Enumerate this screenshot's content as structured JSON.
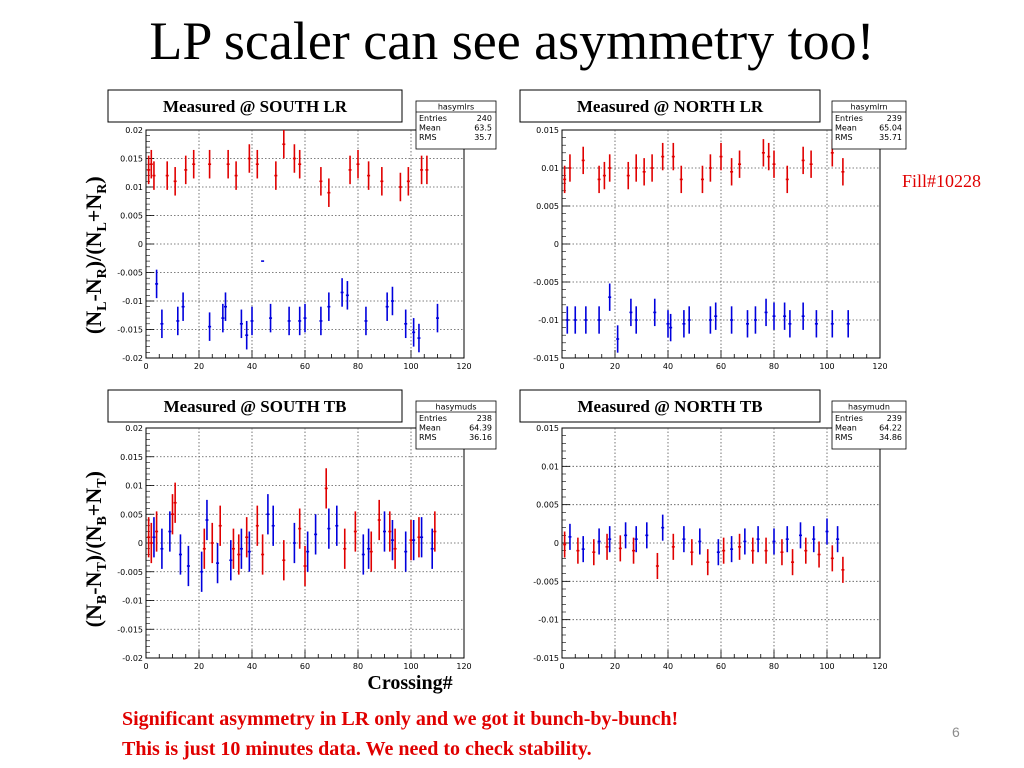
{
  "slide": {
    "title": "LP scaler can see asymmetry too!",
    "fill_label": "Fill#10228",
    "note_line1": "Significant asymmetry in LR only and we got it bunch-by-bunch!",
    "note_line2": "This is just 10 minutes data.  We need to check stability.",
    "page_number": "6",
    "xlabel": "Crossing#"
  },
  "colors": {
    "red": "#e00000",
    "blue": "#0000dd",
    "text": "#e00000"
  },
  "chart_data": [
    {
      "id": "south-lr",
      "type": "scatter",
      "title": "Measured @ SOUTH LR",
      "stats": {
        "name": "hasymlrs",
        "rows": [
          [
            "Entries",
            "240"
          ],
          [
            "Mean",
            "63.5"
          ],
          [
            "RMS",
            "35.7"
          ]
        ]
      },
      "xlim": [
        0,
        120
      ],
      "ylim": [
        -0.02,
        0.02
      ],
      "xticks": [
        0,
        20,
        40,
        60,
        80,
        100,
        120
      ],
      "xtick_labels": [
        "0",
        "20",
        "40",
        "60",
        "80",
        "100",
        "120"
      ],
      "yticks": [
        -0.02,
        -0.015,
        -0.01,
        -0.005,
        0,
        0.005,
        0.01,
        0.015,
        0.02
      ],
      "ytick_labels": [
        "-0.02",
        "-0.015",
        "-0.01",
        "-0.005",
        "0",
        "0.005",
        "0.01",
        "0.015",
        "0.02"
      ],
      "grid": true,
      "series": [
        {
          "color": "red",
          "x": [
            1,
            2,
            3,
            8,
            11,
            15,
            18,
            24,
            31,
            34,
            39,
            42,
            49,
            52,
            56,
            58,
            66,
            69,
            77,
            80,
            84,
            89,
            96,
            99,
            104,
            106
          ],
          "y": [
            0.013,
            0.014,
            0.012,
            0.012,
            0.011,
            0.013,
            0.014,
            0.014,
            0.014,
            0.012,
            0.015,
            0.014,
            0.012,
            0.0175,
            0.015,
            0.014,
            0.011,
            0.009,
            0.013,
            0.014,
            0.012,
            0.011,
            0.01,
            0.011,
            0.013,
            0.013
          ],
          "err": [
            0.0025,
            0.0025,
            0.0025,
            0.0025,
            0.0025,
            0.0025,
            0.0025,
            0.0025,
            0.0025,
            0.0025,
            0.0025,
            0.0025,
            0.0025,
            0.0025,
            0.0025,
            0.0025,
            0.0025,
            0.0025,
            0.0025,
            0.0025,
            0.0025,
            0.0025,
            0.0025,
            0.0025,
            0.0025,
            0.0025
          ]
        },
        {
          "color": "blue",
          "x": [
            4,
            6,
            12,
            14,
            24,
            29,
            30,
            36,
            38,
            40,
            44,
            47,
            54,
            58,
            60,
            66,
            69,
            74,
            76,
            83,
            91,
            93,
            98,
            101,
            103,
            110
          ],
          "y": [
            -0.007,
            -0.014,
            -0.0135,
            -0.011,
            -0.0145,
            -0.013,
            -0.011,
            -0.014,
            -0.016,
            -0.0135,
            -0.003,
            -0.013,
            -0.0135,
            -0.0135,
            -0.013,
            -0.0135,
            -0.011,
            -0.0085,
            -0.009,
            -0.0135,
            -0.011,
            -0.01,
            -0.014,
            -0.0155,
            -0.0165,
            -0.013
          ],
          "err": [
            0.0025,
            0.0025,
            0.0025,
            0.0025,
            0.0025,
            0.0025,
            0.0025,
            0.0025,
            0.0025,
            0.0025,
            0,
            0.0025,
            0.0025,
            0.0025,
            0.0025,
            0.0025,
            0.0025,
            0.0025,
            0.0025,
            0.0025,
            0.0025,
            0.0025,
            0.0025,
            0.0025,
            0.0025,
            0.0025
          ]
        }
      ]
    },
    {
      "id": "north-lr",
      "type": "scatter",
      "title": "Measured @ NORTH LR",
      "stats": {
        "name": "hasymlrn",
        "rows": [
          [
            "Entries",
            "239"
          ],
          [
            "Mean",
            "65.04"
          ],
          [
            "RMS",
            "35.71"
          ]
        ]
      },
      "xlim": [
        0,
        120
      ],
      "ylim": [
        -0.015,
        0.015
      ],
      "xticks": [
        0,
        20,
        40,
        60,
        80,
        100,
        120
      ],
      "xtick_labels": [
        "0",
        "20",
        "40",
        "60",
        "80",
        "100",
        "120"
      ],
      "yticks": [
        -0.015,
        -0.01,
        -0.005,
        0,
        0.005,
        0.01,
        0.015
      ],
      "ytick_labels": [
        "-0.015",
        "-0.01",
        "-0.005",
        "0",
        "0.005",
        "0.01",
        "0.015"
      ],
      "grid": true,
      "series": [
        {
          "color": "red",
          "x": [
            1,
            3,
            8,
            14,
            16,
            18,
            25,
            28,
            31,
            34,
            38,
            42,
            45,
            53,
            56,
            60,
            64,
            67,
            76,
            78,
            80,
            85,
            91,
            94,
            102,
            106
          ],
          "y": [
            0.0085,
            0.01,
            0.011,
            0.0085,
            0.009,
            0.01,
            0.009,
            0.01,
            0.0095,
            0.01,
            0.0115,
            0.0115,
            0.0085,
            0.0085,
            0.01,
            0.0115,
            0.0095,
            0.0105,
            0.012,
            0.0115,
            0.0105,
            0.0085,
            0.011,
            0.0105,
            0.012,
            0.0095
          ],
          "err": [
            0.0018,
            0.0018,
            0.0018,
            0.0018,
            0.0018,
            0.0018,
            0.0018,
            0.0018,
            0.0018,
            0.0018,
            0.0018,
            0.0018,
            0.0018,
            0.0018,
            0.0018,
            0.0018,
            0.0018,
            0.0018,
            0.0018,
            0.0018,
            0.0018,
            0.0018,
            0.0018,
            0.0018,
            0.0018,
            0.0018
          ]
        },
        {
          "color": "blue",
          "x": [
            2,
            5,
            9,
            14,
            18,
            21,
            26,
            28,
            35,
            40,
            41,
            46,
            48,
            56,
            58,
            64,
            70,
            73,
            77,
            80,
            84,
            86,
            91,
            96,
            102,
            108
          ],
          "y": [
            -0.01,
            -0.01,
            -0.01,
            -0.01,
            -0.007,
            -0.0125,
            -0.009,
            -0.01,
            -0.009,
            -0.0105,
            -0.011,
            -0.0105,
            -0.01,
            -0.01,
            -0.0095,
            -0.01,
            -0.0105,
            -0.01,
            -0.009,
            -0.0095,
            -0.0095,
            -0.0105,
            -0.0095,
            -0.0105,
            -0.0105,
            -0.0105
          ],
          "err": [
            0.0018,
            0.0018,
            0.0018,
            0.0018,
            0.0018,
            0.0018,
            0.0018,
            0.0018,
            0.0018,
            0.0018,
            0.0018,
            0.0018,
            0.0018,
            0.0018,
            0.0018,
            0.0018,
            0.0018,
            0.0018,
            0.0018,
            0.0018,
            0.0018,
            0.0018,
            0.0018,
            0.0018,
            0.0018,
            0.0018
          ]
        }
      ]
    },
    {
      "id": "south-tb",
      "type": "scatter",
      "title": "Measured @ SOUTH TB",
      "stats": {
        "name": "hasymuds",
        "rows": [
          [
            "Entries",
            "238"
          ],
          [
            "Mean",
            "64.39"
          ],
          [
            "RMS",
            "36.16"
          ]
        ]
      },
      "xlim": [
        0,
        120
      ],
      "ylim": [
        -0.02,
        0.02
      ],
      "xticks": [
        0,
        20,
        40,
        60,
        80,
        100,
        120
      ],
      "xtick_labels": [
        "0",
        "20",
        "40",
        "60",
        "80",
        "100",
        "120"
      ],
      "yticks": [
        -0.02,
        -0.015,
        -0.01,
        -0.005,
        0,
        0.005,
        0.01,
        0.015,
        0.02
      ],
      "ytick_labels": [
        "-0.02",
        "-0.015",
        "-0.01",
        "-0.005",
        "0",
        "0.005",
        "0.01",
        "0.015",
        "0.02"
      ],
      "grid": true,
      "series": [
        {
          "color": "red",
          "x": [
            1,
            2,
            4,
            10,
            11,
            22,
            25,
            28,
            33,
            35,
            38,
            42,
            44,
            52,
            58,
            60,
            68,
            75,
            79,
            85,
            88,
            92,
            94,
            100,
            103,
            109
          ],
          "y": [
            0.001,
            0.0,
            0.002,
            0.005,
            0.007,
            -0.001,
            0.0,
            0.003,
            -0.001,
            -0.002,
            0.001,
            0.003,
            -0.002,
            -0.003,
            0.0025,
            -0.004,
            0.0095,
            -0.001,
            0.002,
            -0.0015,
            0.004,
            0.002,
            -0.001,
            0.0005,
            0.001,
            0.002
          ],
          "err": [
            0.0035,
            0.0035,
            0.0035,
            0.0035,
            0.0035,
            0.0035,
            0.0035,
            0.0035,
            0.0035,
            0.0035,
            0.0035,
            0.0035,
            0.0035,
            0.0035,
            0.0035,
            0.0035,
            0.0035,
            0.0035,
            0.0035,
            0.0035,
            0.0035,
            0.0035,
            0.0035,
            0.0035,
            0.0035,
            0.0035
          ]
        },
        {
          "color": "blue",
          "x": [
            3,
            6,
            9,
            13,
            16,
            21,
            23,
            27,
            32,
            36,
            39,
            46,
            48,
            56,
            61,
            64,
            69,
            72,
            82,
            84,
            90,
            93,
            98,
            101,
            104,
            108
          ],
          "y": [
            0.001,
            -0.001,
            0.002,
            -0.002,
            -0.004,
            -0.005,
            0.004,
            -0.0035,
            -0.003,
            -0.001,
            -0.0015,
            0.005,
            0.003,
            0.0,
            -0.0015,
            0.0015,
            0.0025,
            0.003,
            -0.002,
            -0.001,
            0.002,
            0.0005,
            -0.0015,
            0.0005,
            0.001,
            -0.001
          ],
          "err": [
            0.0035,
            0.0035,
            0.0035,
            0.0035,
            0.0035,
            0.0035,
            0.0035,
            0.0035,
            0.0035,
            0.0035,
            0.0035,
            0.0035,
            0.0035,
            0.0035,
            0.0035,
            0.0035,
            0.0035,
            0.0035,
            0.0035,
            0.0035,
            0.0035,
            0.0035,
            0.0035,
            0.0035,
            0.0035,
            0.0035
          ]
        }
      ]
    },
    {
      "id": "north-tb",
      "type": "scatter",
      "title": "Measured @ NORTH TB",
      "stats": {
        "name": "hasymudn",
        "rows": [
          [
            "Entries",
            "239"
          ],
          [
            "Mean",
            "64.22"
          ],
          [
            "RMS",
            "34.86"
          ]
        ]
      },
      "xlim": [
        0,
        120
      ],
      "ylim": [
        -0.015,
        0.015
      ],
      "xticks": [
        0,
        20,
        40,
        60,
        80,
        100,
        120
      ],
      "xtick_labels": [
        "0",
        "20",
        "40",
        "60",
        "80",
        "100",
        "120"
      ],
      "yticks": [
        -0.015,
        -0.01,
        -0.005,
        0,
        0.005,
        0.01,
        0.015
      ],
      "ytick_labels": [
        "-0.015",
        "-0.01",
        "-0.005",
        "0",
        "0.005",
        "0.01",
        "0.015"
      ],
      "grid": true,
      "series": [
        {
          "color": "red",
          "x": [
            1,
            6,
            12,
            17,
            22,
            27,
            36,
            42,
            49,
            55,
            61,
            67,
            72,
            77,
            83,
            87,
            92,
            97,
            102,
            106
          ],
          "y": [
            -0.0002,
            -0.001,
            -0.0012,
            -0.0005,
            -0.0007,
            -0.001,
            -0.003,
            -0.0005,
            -0.0012,
            -0.0025,
            -0.001,
            -0.0005,
            -0.001,
            -0.001,
            -0.0012,
            -0.0025,
            -0.001,
            -0.0015,
            -0.002,
            -0.0035
          ],
          "err": [
            0.0017,
            0.0017,
            0.0017,
            0.0017,
            0.0017,
            0.0017,
            0.0017,
            0.0017,
            0.0017,
            0.0017,
            0.0017,
            0.0017,
            0.0017,
            0.0017,
            0.0017,
            0.0017,
            0.0017,
            0.0017,
            0.0017,
            0.0017
          ]
        },
        {
          "color": "blue",
          "x": [
            3,
            8,
            14,
            18,
            24,
            28,
            32,
            38,
            46,
            52,
            59,
            64,
            69,
            74,
            80,
            85,
            90,
            95,
            100,
            104
          ],
          "y": [
            0.0008,
            -0.0008,
            0.0002,
            0.0005,
            0.001,
            0.0005,
            0.001,
            0.002,
            0.0005,
            0.0002,
            -0.0012,
            -0.0008,
            0.0002,
            0.0005,
            0.0002,
            0.0005,
            0.001,
            0.0005,
            0.0015,
            0.0005
          ],
          "err": [
            0.0017,
            0.0017,
            0.0017,
            0.0017,
            0.0017,
            0.0017,
            0.0017,
            0.0017,
            0.0017,
            0.0017,
            0.0017,
            0.0017,
            0.0017,
            0.0017,
            0.0017,
            0.0017,
            0.0017,
            0.0017,
            0.0017,
            0.0017
          ]
        }
      ]
    }
  ]
}
